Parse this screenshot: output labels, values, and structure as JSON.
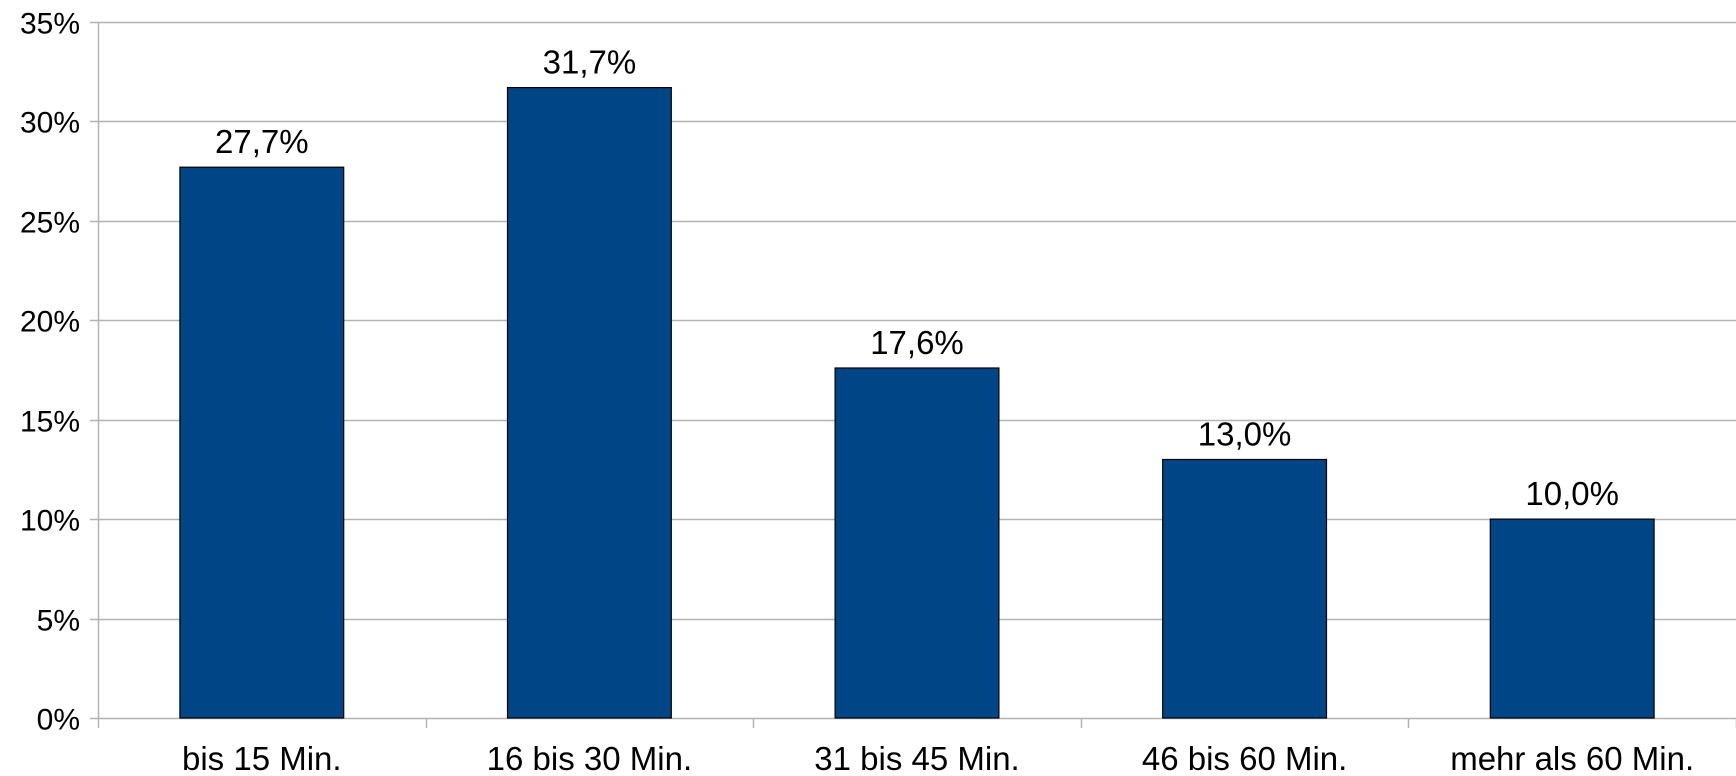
{
  "chart_data": {
    "type": "bar",
    "title": "",
    "xlabel": "",
    "ylabel": "",
    "categories": [
      "bis 15 Min.",
      "16 bis 30 Min.",
      "31 bis 45 Min.",
      "46 bis 60 Min.",
      "mehr als 60 Min."
    ],
    "values": [
      27.7,
      31.7,
      17.6,
      13.0,
      10.0
    ],
    "data_labels": [
      "27,7%",
      "31,7%",
      "17,6%",
      "13,0%",
      "10,0%"
    ],
    "ylim": [
      0,
      35
    ],
    "y_ticks": [
      0,
      5,
      10,
      15,
      20,
      25,
      30,
      35
    ],
    "y_tick_labels": [
      "0%",
      "5%",
      "10%",
      "15%",
      "20%",
      "25%",
      "30%",
      "35%"
    ],
    "grid": "horizontal",
    "legend": "none",
    "colors": {
      "bar": "#004586",
      "bar_outline": "#000000",
      "grid": "#b3b3b3",
      "axis": "#b3b3b3",
      "text": "#000000"
    }
  }
}
